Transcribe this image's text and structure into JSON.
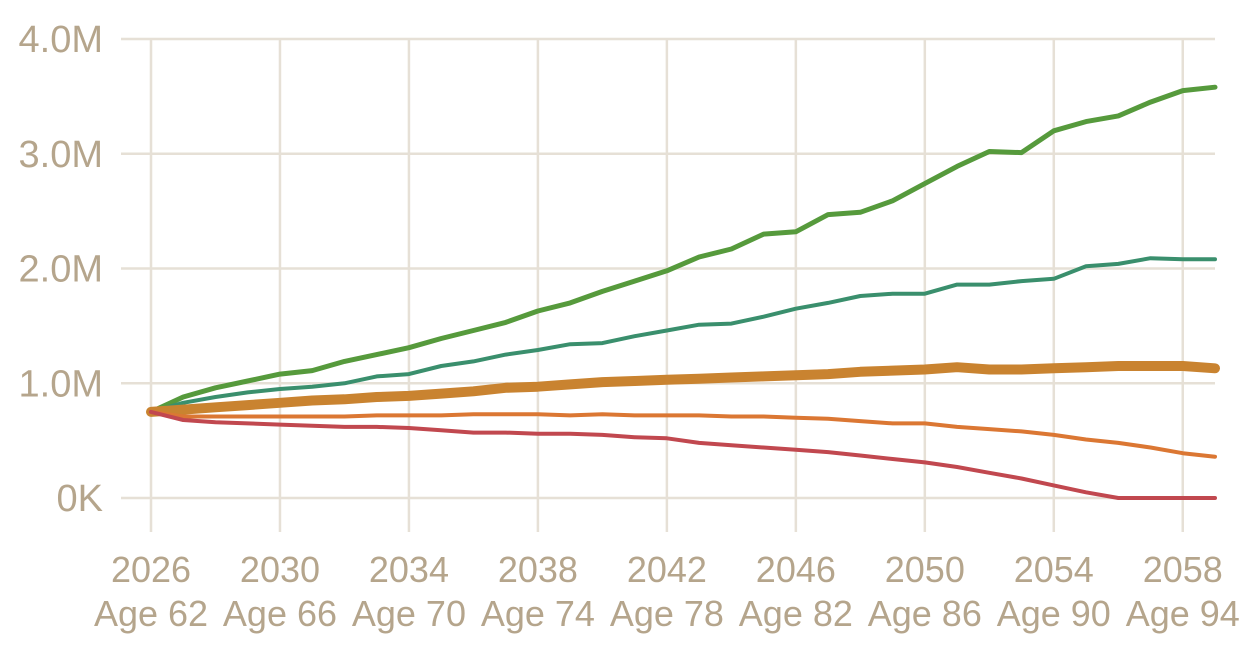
{
  "chart_data": {
    "type": "line",
    "title": "",
    "xlabel": "",
    "ylabel": "",
    "x": [
      2026,
      2027,
      2028,
      2029,
      2030,
      2031,
      2032,
      2033,
      2034,
      2035,
      2036,
      2037,
      2038,
      2039,
      2040,
      2041,
      2042,
      2043,
      2044,
      2045,
      2046,
      2047,
      2048,
      2049,
      2050,
      2051,
      2052,
      2053,
      2054,
      2055,
      2056,
      2057,
      2058,
      2059
    ],
    "xlim": [
      2026,
      2059
    ],
    "ylim": [
      0,
      4000000
    ],
    "grid": true,
    "x_ticks": [
      {
        "value": 2026,
        "year": "2026",
        "age": "Age 62"
      },
      {
        "value": 2030,
        "year": "2030",
        "age": "Age 66"
      },
      {
        "value": 2034,
        "year": "2034",
        "age": "Age 70"
      },
      {
        "value": 2038,
        "year": "2038",
        "age": "Age 74"
      },
      {
        "value": 2042,
        "year": "2042",
        "age": "Age 78"
      },
      {
        "value": 2046,
        "year": "2046",
        "age": "Age 82"
      },
      {
        "value": 2050,
        "year": "2050",
        "age": "Age 86"
      },
      {
        "value": 2054,
        "year": "2054",
        "age": "Age 90"
      },
      {
        "value": 2058,
        "year": "2058",
        "age": "Age 94"
      }
    ],
    "y_ticks": [
      {
        "value": 0,
        "label": "0K"
      },
      {
        "value": 1000000,
        "label": "1.0M"
      },
      {
        "value": 2000000,
        "label": "2.0M"
      },
      {
        "value": 3000000,
        "label": "3.0M"
      },
      {
        "value": 4000000,
        "label": "4.0M"
      }
    ],
    "series": [
      {
        "color": "#569a3c",
        "width": 5,
        "values": [
          750000,
          880000,
          960000,
          1020000,
          1080000,
          1110000,
          1190000,
          1250000,
          1310000,
          1390000,
          1460000,
          1530000,
          1630000,
          1700000,
          1800000,
          1890000,
          1980000,
          2100000,
          2170000,
          2300000,
          2320000,
          2470000,
          2490000,
          2590000,
          2740000,
          2890000,
          3020000,
          3010000,
          3200000,
          3280000,
          3330000,
          3450000,
          3550000,
          3580000
        ]
      },
      {
        "color": "#3a8f6d",
        "width": 4,
        "values": [
          750000,
          830000,
          880000,
          920000,
          950000,
          970000,
          1000000,
          1060000,
          1080000,
          1150000,
          1190000,
          1250000,
          1290000,
          1340000,
          1350000,
          1410000,
          1460000,
          1510000,
          1520000,
          1580000,
          1650000,
          1700000,
          1760000,
          1780000,
          1780000,
          1860000,
          1860000,
          1890000,
          1910000,
          2020000,
          2040000,
          2090000,
          2080000,
          2080000
        ]
      },
      {
        "color": "#c98330",
        "width": 10,
        "values": [
          750000,
          770000,
          790000,
          810000,
          830000,
          850000,
          860000,
          880000,
          890000,
          910000,
          930000,
          960000,
          970000,
          990000,
          1010000,
          1020000,
          1030000,
          1040000,
          1050000,
          1060000,
          1070000,
          1080000,
          1100000,
          1110000,
          1120000,
          1140000,
          1120000,
          1120000,
          1130000,
          1140000,
          1150000,
          1150000,
          1150000,
          1130000
        ]
      },
      {
        "color": "#db7733",
        "width": 4,
        "values": [
          750000,
          710000,
          710000,
          710000,
          710000,
          710000,
          710000,
          720000,
          720000,
          720000,
          730000,
          730000,
          730000,
          720000,
          730000,
          720000,
          720000,
          720000,
          710000,
          710000,
          700000,
          690000,
          670000,
          650000,
          650000,
          620000,
          600000,
          580000,
          550000,
          510000,
          480000,
          440000,
          390000,
          360000
        ]
      },
      {
        "color": "#c1484f",
        "width": 4,
        "values": [
          750000,
          680000,
          660000,
          650000,
          640000,
          630000,
          620000,
          620000,
          610000,
          590000,
          570000,
          570000,
          560000,
          560000,
          550000,
          530000,
          520000,
          480000,
          460000,
          440000,
          420000,
          400000,
          370000,
          340000,
          310000,
          270000,
          220000,
          170000,
          110000,
          50000,
          0,
          0,
          0,
          0
        ]
      }
    ]
  }
}
